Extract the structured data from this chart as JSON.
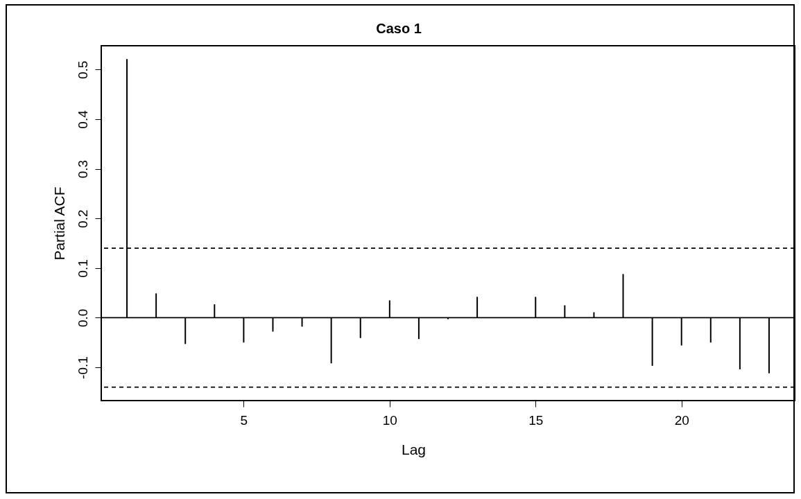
{
  "chart_data": {
    "type": "bar",
    "title": "Caso 1",
    "xlabel": "Lag",
    "ylabel": "Partial ACF",
    "x": [
      1,
      2,
      3,
      4,
      5,
      6,
      7,
      8,
      9,
      10,
      11,
      12,
      13,
      14,
      15,
      16,
      17,
      18,
      19,
      20,
      21,
      22,
      23
    ],
    "values": [
      0.521,
      0.049,
      -0.053,
      0.027,
      -0.05,
      -0.028,
      -0.018,
      -0.092,
      -0.041,
      0.035,
      -0.043,
      -0.003,
      0.042,
      0.0,
      0.042,
      0.025,
      0.011,
      0.088,
      -0.097,
      -0.056,
      -0.05,
      -0.104,
      -0.112
    ],
    "color": "#000000",
    "xlim": [
      0.12,
      23.88
    ],
    "xticks": [
      5,
      10,
      15,
      20
    ],
    "ylim": [
      -0.167,
      0.548
    ],
    "yticks": [
      -0.1,
      {
        "value": 0,
        "label": "0.0"
      },
      0.1,
      0.2,
      0.3,
      0.4,
      0.5
    ],
    "ref_lines": [
      {
        "axis": "y",
        "value": 0,
        "color": "#000000",
        "line_style": "solid"
      },
      {
        "axis": "y",
        "value": 0.14,
        "color": "#000000",
        "line_style": "dashed"
      },
      {
        "axis": "y",
        "value": -0.14,
        "color": "#000000",
        "line_style": "dashed"
      }
    ],
    "grid": false
  }
}
